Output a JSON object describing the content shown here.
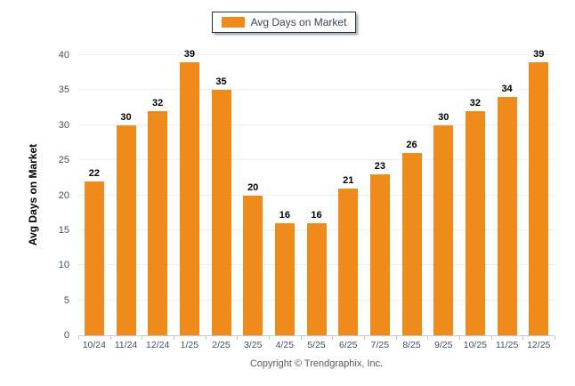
{
  "legend": {
    "label": "Avg Days on Market"
  },
  "y_axis": {
    "title": "Avg Days on Market"
  },
  "footer": {
    "copyright": "Copyright © Trendgraphix, Inc."
  },
  "colors": {
    "bar": "#ef8b1b",
    "grid": "#ececec",
    "axis": "#c6c6c6",
    "tick_label": "#424f66",
    "value_label": "#000000",
    "legend_border": "#1c3563"
  },
  "chart_data": {
    "type": "bar",
    "title": "",
    "xlabel": "",
    "ylabel": "Avg Days on Market",
    "categories": [
      "10/24",
      "11/24",
      "12/24",
      "1/25",
      "2/25",
      "3/25",
      "4/25",
      "5/25",
      "6/25",
      "7/25",
      "8/25",
      "9/25",
      "10/25",
      "11/25",
      "12/25"
    ],
    "values": [
      22,
      30,
      32,
      39,
      35,
      20,
      16,
      16,
      21,
      23,
      26,
      30,
      32,
      34,
      39
    ],
    "ylim": [
      0,
      40
    ],
    "yticks": [
      0,
      5,
      10,
      15,
      20,
      25,
      30,
      35,
      40
    ],
    "grid": "horizontal",
    "legend_position": "top-center",
    "legend_entries": [
      "Avg Days on Market"
    ],
    "data_labels": true
  }
}
